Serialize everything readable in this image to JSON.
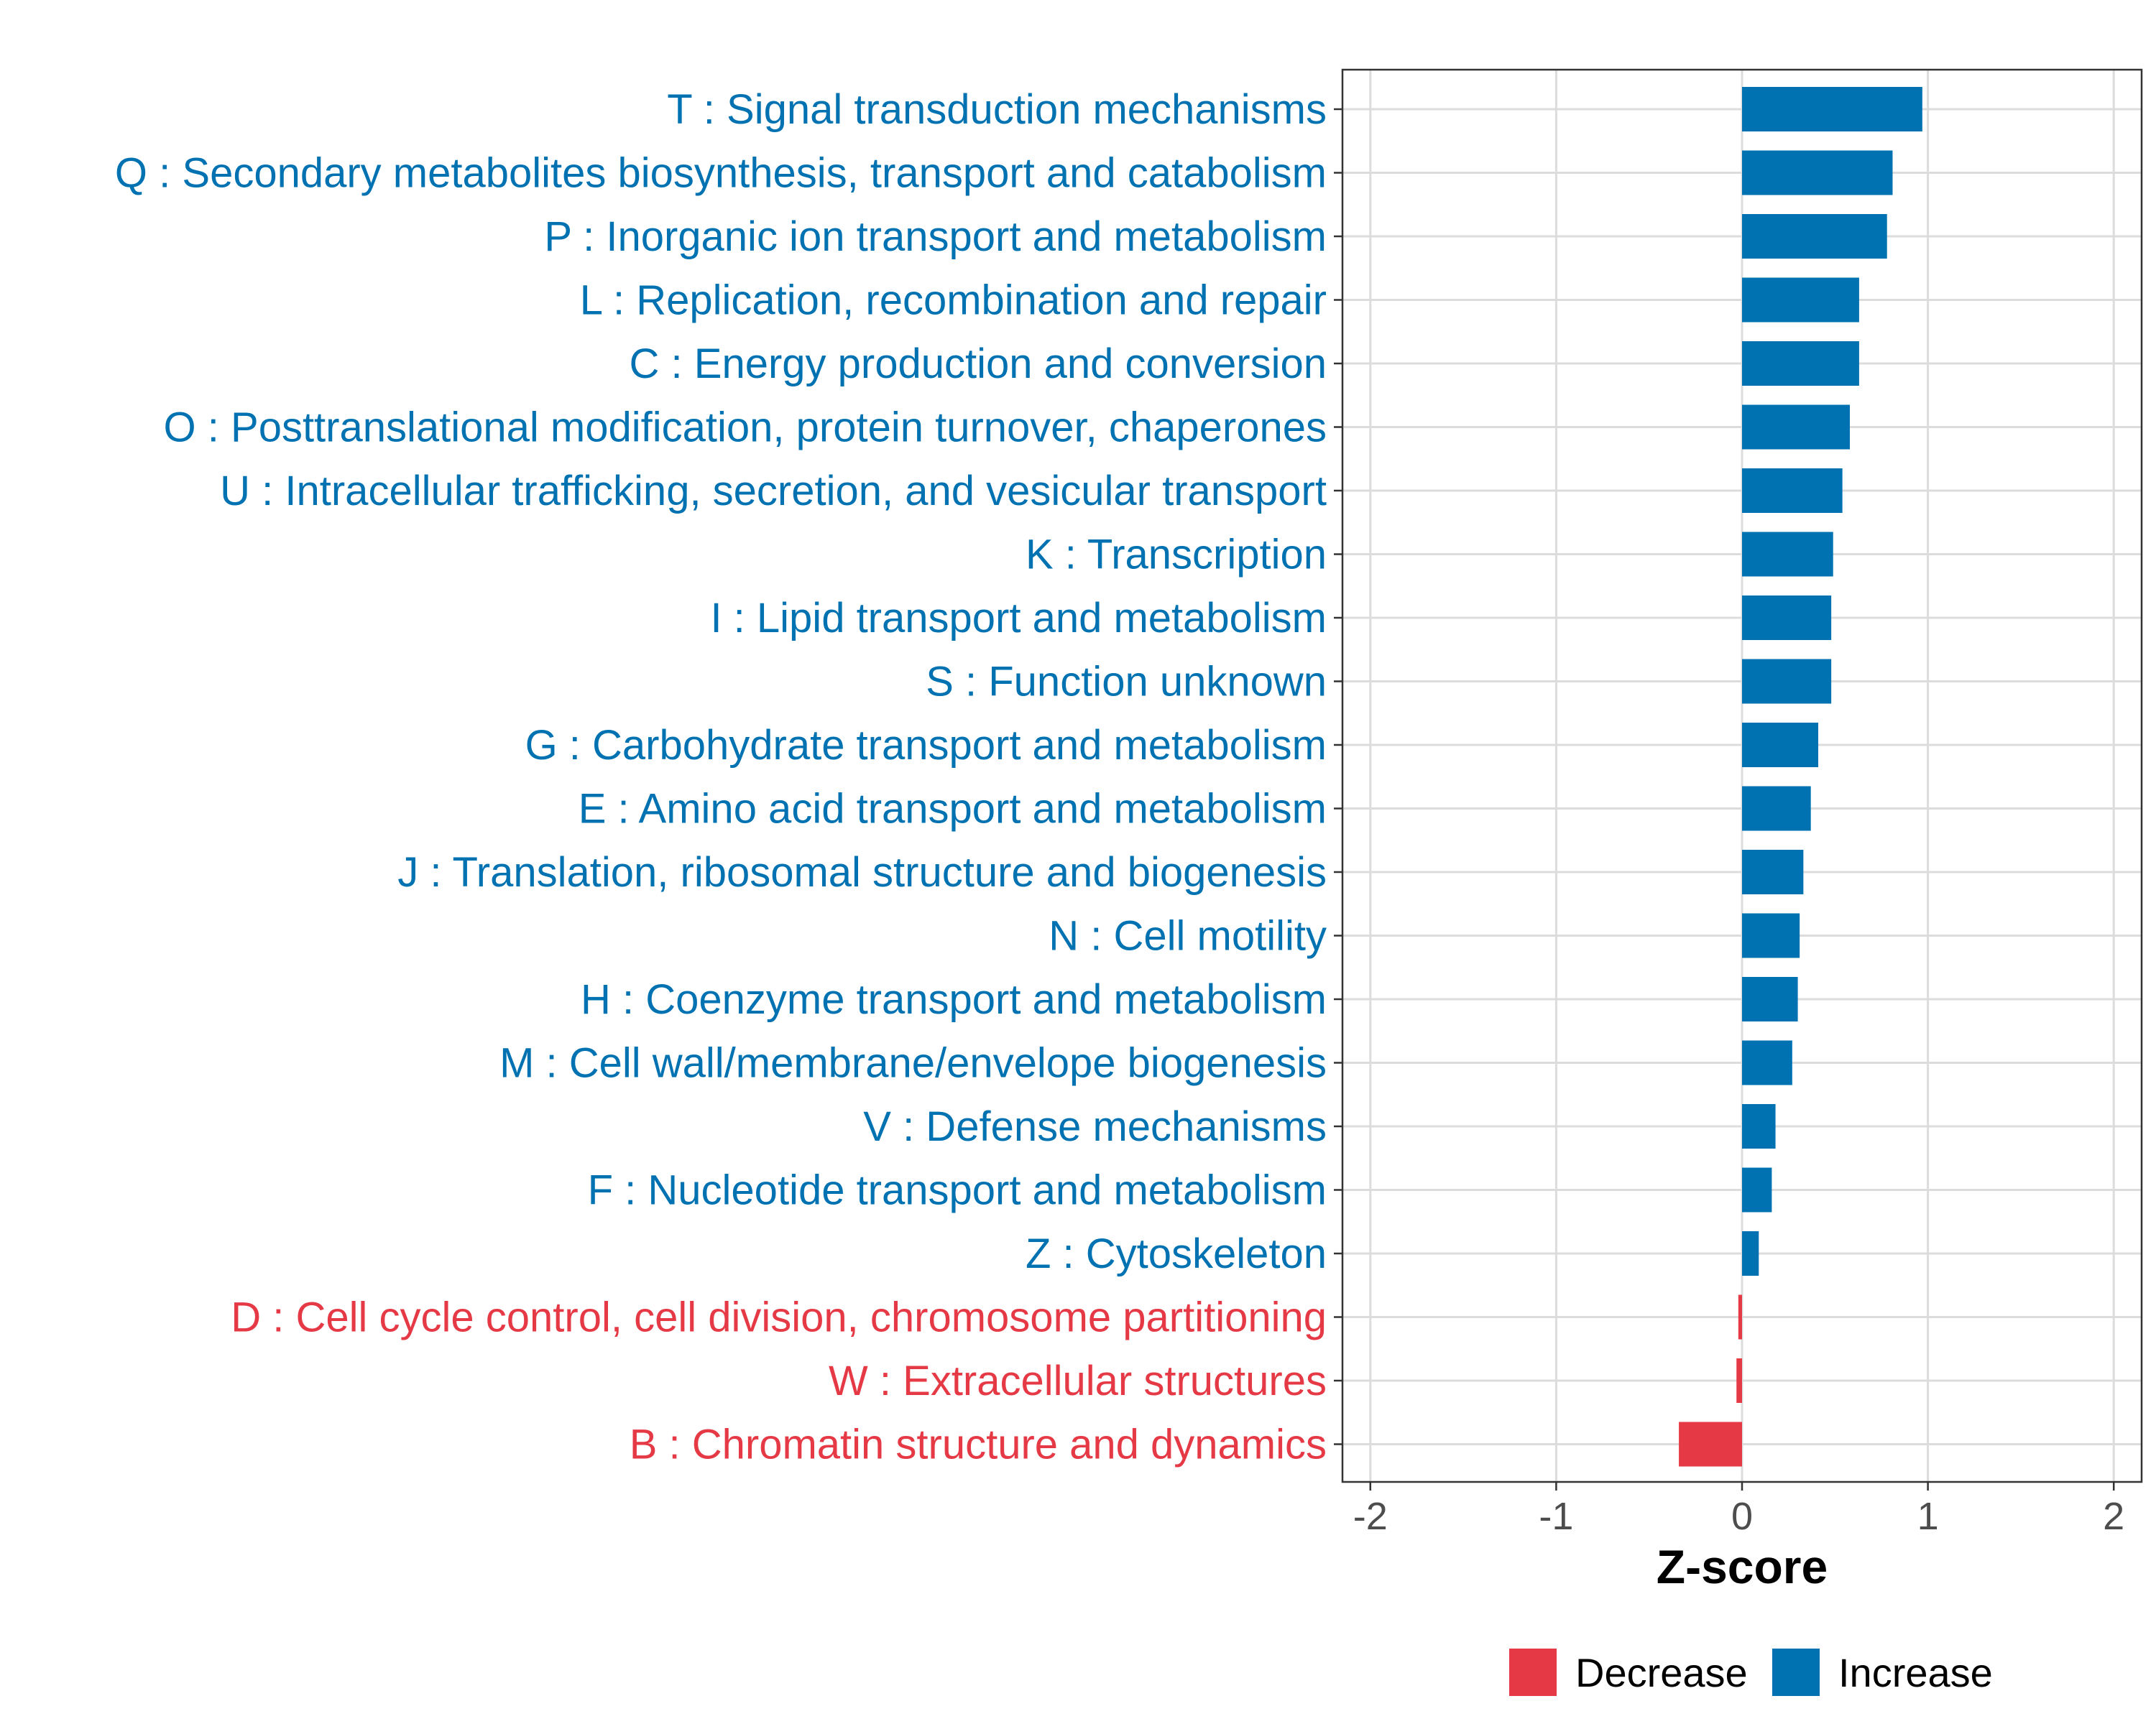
{
  "chart_data": {
    "type": "bar",
    "orientation": "horizontal",
    "xlabel": "Z-score",
    "xlim": [
      -2.15,
      2.15
    ],
    "xticks": [
      -2,
      -1,
      0,
      1,
      2
    ],
    "xtick_labels": [
      "-2",
      "-1",
      "0",
      "1",
      "2"
    ],
    "grid": true,
    "legend_position": "bottom",
    "legend": [
      {
        "label": "Decrease",
        "color": "#E63946"
      },
      {
        "label": "Increase",
        "color": "#0072B2"
      }
    ],
    "categories": [
      {
        "label": "T : Signal transduction mechanisms",
        "value": 0.97,
        "group": "Increase"
      },
      {
        "label": "Q : Secondary metabolites biosynthesis, transport and catabolism",
        "value": 0.81,
        "group": "Increase"
      },
      {
        "label": "P : Inorganic ion transport and metabolism",
        "value": 0.78,
        "group": "Increase"
      },
      {
        "label": "L : Replication, recombination and repair",
        "value": 0.63,
        "group": "Increase"
      },
      {
        "label": "C : Energy production and conversion",
        "value": 0.63,
        "group": "Increase"
      },
      {
        "label": "O : Posttranslational modification, protein turnover, chaperones",
        "value": 0.58,
        "group": "Increase"
      },
      {
        "label": "U : Intracellular trafficking, secretion, and vesicular transport",
        "value": 0.54,
        "group": "Increase"
      },
      {
        "label": "K : Transcription",
        "value": 0.49,
        "group": "Increase"
      },
      {
        "label": "I : Lipid transport and metabolism",
        "value": 0.48,
        "group": "Increase"
      },
      {
        "label": "S : Function unknown",
        "value": 0.48,
        "group": "Increase"
      },
      {
        "label": "G : Carbohydrate transport and metabolism",
        "value": 0.41,
        "group": "Increase"
      },
      {
        "label": "E : Amino acid transport and metabolism",
        "value": 0.37,
        "group": "Increase"
      },
      {
        "label": "J : Translation, ribosomal structure and biogenesis",
        "value": 0.33,
        "group": "Increase"
      },
      {
        "label": "N : Cell motility",
        "value": 0.31,
        "group": "Increase"
      },
      {
        "label": "H : Coenzyme transport and metabolism",
        "value": 0.3,
        "group": "Increase"
      },
      {
        "label": "M : Cell wall/membrane/envelope biogenesis",
        "value": 0.27,
        "group": "Increase"
      },
      {
        "label": "V : Defense mechanisms",
        "value": 0.18,
        "group": "Increase"
      },
      {
        "label": "F : Nucleotide transport and metabolism",
        "value": 0.16,
        "group": "Increase"
      },
      {
        "label": "Z : Cytoskeleton",
        "value": 0.09,
        "group": "Increase"
      },
      {
        "label": "D : Cell cycle control, cell division, chromosome partitioning",
        "value": -0.02,
        "group": "Decrease"
      },
      {
        "label": "W : Extracellular structures",
        "value": -0.03,
        "group": "Decrease"
      },
      {
        "label": "B : Chromatin structure and dynamics",
        "value": -0.34,
        "group": "Decrease"
      }
    ]
  }
}
